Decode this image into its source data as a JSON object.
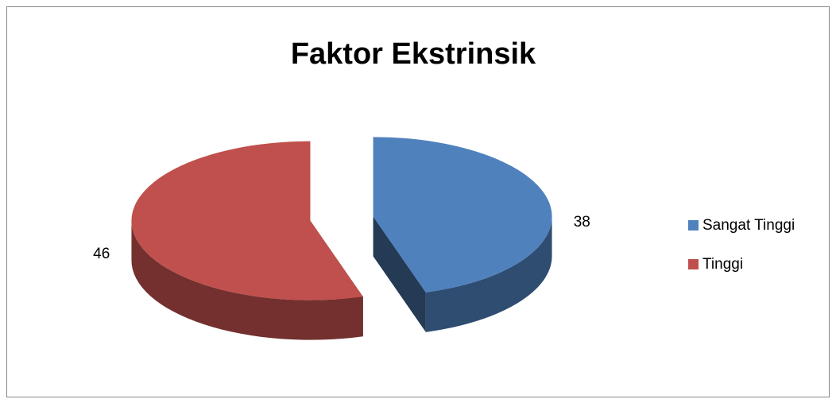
{
  "chart_data": {
    "type": "pie",
    "title": "Faktor Ekstrinsik",
    "categories": [
      "Sangat Tinggi",
      "Tinggi"
    ],
    "values": [
      38,
      46
    ],
    "colors": [
      "#4f81bd",
      "#c0504d"
    ],
    "legend": "right"
  }
}
